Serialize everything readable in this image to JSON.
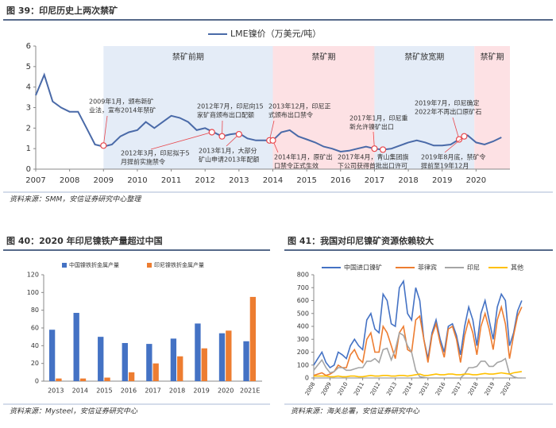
{
  "chart_data": [
    {
      "type": "line",
      "title": "图 39：印尼历史上两次禁矿",
      "source": "资料来源：SMM，安信证券研究中心整理",
      "x": [
        2007,
        2007.25,
        2007.5,
        2007.75,
        2008,
        2008.25,
        2008.5,
        2008.75,
        2009,
        2009.25,
        2009.5,
        2009.75,
        2010,
        2010.25,
        2010.5,
        2010.75,
        2011,
        2011.25,
        2011.5,
        2011.75,
        2012,
        2012.25,
        2012.5,
        2012.75,
        2013,
        2013.25,
        2013.5,
        2013.75,
        2014,
        2014.25,
        2014.5,
        2014.75,
        2015,
        2015.25,
        2015.5,
        2015.75,
        2016,
        2016.25,
        2016.5,
        2016.75,
        2017,
        2017.25,
        2017.5,
        2017.75,
        2018,
        2018.25,
        2018.5,
        2018.75,
        2019,
        2019.25,
        2019.5,
        2019.75,
        2020,
        2020.25,
        2020.5,
        2020.75
      ],
      "series": [
        {
          "name": "LME镍价（万美元/吨）",
          "color": "#4a6aa8",
          "values": [
            3.6,
            4.6,
            3.3,
            3.0,
            2.8,
            2.8,
            2.0,
            1.2,
            1.1,
            1.2,
            1.6,
            1.8,
            1.9,
            2.3,
            2.0,
            2.3,
            2.6,
            2.5,
            2.3,
            1.9,
            2.0,
            1.8,
            1.6,
            1.7,
            1.75,
            1.5,
            1.4,
            1.4,
            1.4,
            1.8,
            1.9,
            1.6,
            1.45,
            1.3,
            1.1,
            1.0,
            0.85,
            0.9,
            1.0,
            1.1,
            1.0,
            0.95,
            1.0,
            1.15,
            1.3,
            1.4,
            1.3,
            1.15,
            1.15,
            1.2,
            1.45,
            1.65,
            1.3,
            1.2,
            1.35,
            1.55
          ]
        }
      ],
      "xlim": [
        2007,
        2021
      ],
      "xticks": [
        2007,
        2008,
        2009,
        2010,
        2011,
        2012,
        2013,
        2014,
        2015,
        2016,
        2017,
        2018,
        2019,
        2020
      ],
      "ylim": [
        0,
        6
      ],
      "yticks": [
        0,
        1,
        2,
        3,
        4,
        5,
        6
      ],
      "periods": [
        {
          "label": "禁矿前期",
          "start": 2009,
          "end": 2014,
          "color": "#e4ecf7"
        },
        {
          "label": "禁矿期",
          "start": 2014,
          "end": 2017,
          "color": "#fde1e4"
        },
        {
          "label": "禁矿放宽期",
          "start": 2017,
          "end": 2019.95,
          "color": "#e4ecf7"
        },
        {
          "label": "禁矿期",
          "start": 2019.95,
          "end": 2021,
          "color": "#fde1e4"
        }
      ],
      "period_label_color": "#e8474c",
      "event_color": "#e8474c",
      "events": [
        {
          "x": 2009,
          "y": 1.15,
          "text": [
            "2009年1月，颁布新矿",
            "业法，宣布2014年禁矿"
          ]
        },
        {
          "x": 2012.2,
          "y": 1.8,
          "text": [
            "2012年3月，印尼拟于5",
            "月提前实施禁令"
          ]
        },
        {
          "x": 2012.5,
          "y": 1.6,
          "text": [
            "2012年7月，印尼向15",
            "家矿商颁布出口配额"
          ]
        },
        {
          "x": 2013,
          "y": 1.7,
          "text": [
            "2013年1月，大部分",
            "矿山申请2013年配额"
          ]
        },
        {
          "x": 2013.9,
          "y": 1.4,
          "text": [
            "2013年12月，印尼正",
            "式颁布出口禁令"
          ]
        },
        {
          "x": 2014,
          "y": 1.4,
          "text": [
            "2014年1月，原矿出",
            "口禁令正式生效"
          ]
        },
        {
          "x": 2017,
          "y": 1.0,
          "text": [
            "2017年1月，印尼重",
            "新允许镍矿出口"
          ]
        },
        {
          "x": 2017.25,
          "y": 0.95,
          "text": [
            "2017年4月，青山集团旗",
            "下公司获得首批出口许可"
          ]
        },
        {
          "x": 2019.5,
          "y": 1.45,
          "text": [
            "2019年7月，印尼确定",
            "2022年不再出口原矿石"
          ]
        },
        {
          "x": 2019.65,
          "y": 1.6,
          "text": [
            "2019年8月底，禁矿令",
            "提前至19年12月"
          ]
        }
      ],
      "legend": "top"
    },
    {
      "type": "bar",
      "title": "图 40：2020 年印尼镍铁产量超过中国",
      "source": "资料来源：Mysteel，安信证券研究中心",
      "categories": [
        "2013",
        "2014",
        "2015",
        "2016",
        "2017",
        "2018",
        "2019",
        "2020",
        "2021E"
      ],
      "series": [
        {
          "name": "中国镍铁折金属产量",
          "color": "#4472c4",
          "values": [
            58,
            77,
            50,
            43,
            42,
            48,
            65,
            54,
            45
          ]
        },
        {
          "name": "印尼镍铁折金属产量",
          "color": "#ed7d31",
          "values": [
            3,
            3,
            4,
            10,
            20,
            28,
            37,
            57,
            95
          ]
        }
      ],
      "ylim": [
        0,
        120
      ],
      "yticks": [
        0,
        20,
        40,
        60,
        80,
        100,
        120
      ],
      "legend": "top"
    },
    {
      "type": "line",
      "title": "图 41：我国对印尼镍矿资源依赖较大",
      "source": "资料来源：海关总署，安信证券研究中心",
      "x": [
        2008,
        2008.25,
        2008.5,
        2008.75,
        2009,
        2009.25,
        2009.5,
        2009.75,
        2010,
        2010.25,
        2010.5,
        2010.75,
        2011,
        2011.25,
        2011.5,
        2011.75,
        2012,
        2012.25,
        2012.5,
        2012.75,
        2013,
        2013.25,
        2013.5,
        2013.75,
        2014,
        2014.25,
        2014.5,
        2014.75,
        2015,
        2015.25,
        2015.5,
        2015.75,
        2016,
        2016.25,
        2016.5,
        2016.75,
        2017,
        2017.25,
        2017.5,
        2017.75,
        2018,
        2018.25,
        2018.5,
        2018.75,
        2019,
        2019.25,
        2019.5,
        2019.75,
        2020,
        2020.25,
        2020.5,
        2020.75
      ],
      "series": [
        {
          "name": "中国进口镍矿",
          "color": "#4472c4",
          "values": [
            100,
            150,
            200,
            120,
            80,
            100,
            200,
            180,
            150,
            250,
            300,
            250,
            220,
            450,
            500,
            380,
            350,
            650,
            600,
            420,
            400,
            700,
            750,
            500,
            450,
            700,
            600,
            300,
            150,
            350,
            450,
            300,
            200,
            400,
            420,
            330,
            180,
            400,
            550,
            450,
            250,
            500,
            600,
            450,
            300,
            550,
            650,
            600,
            250,
            350,
            520,
            600
          ]
        },
        {
          "name": "菲律宾",
          "color": "#ed7d31",
          "values": [
            20,
            30,
            40,
            20,
            30,
            50,
            100,
            80,
            80,
            180,
            220,
            150,
            120,
            300,
            350,
            200,
            200,
            400,
            350,
            250,
            150,
            350,
            400,
            220,
            200,
            450,
            480,
            300,
            120,
            330,
            420,
            270,
            160,
            380,
            400,
            300,
            120,
            330,
            450,
            350,
            180,
            400,
            500,
            380,
            220,
            450,
            550,
            420,
            150,
            330,
            480,
            550
          ]
        },
        {
          "name": "印尼",
          "color": "#a5a5a5",
          "values": [
            60,
            100,
            140,
            80,
            40,
            50,
            80,
            80,
            60,
            60,
            70,
            80,
            80,
            130,
            130,
            150,
            120,
            220,
            230,
            140,
            220,
            350,
            330,
            250,
            200,
            60,
            10,
            5,
            0,
            0,
            0,
            0,
            0,
            0,
            0,
            0,
            0,
            30,
            80,
            80,
            90,
            130,
            130,
            90,
            90,
            120,
            130,
            150,
            30,
            10,
            0,
            0
          ]
        },
        {
          "name": "其他",
          "color": "#ffc000",
          "values": [
            15,
            15,
            15,
            15,
            10,
            10,
            15,
            10,
            10,
            15,
            15,
            10,
            10,
            15,
            20,
            15,
            15,
            20,
            20,
            15,
            15,
            20,
            20,
            15,
            20,
            25,
            30,
            20,
            20,
            25,
            30,
            25,
            25,
            30,
            30,
            25,
            25,
            30,
            30,
            25,
            25,
            30,
            35,
            30,
            30,
            35,
            40,
            35,
            30,
            40,
            45,
            50
          ]
        }
      ],
      "xlim": [
        2008,
        2021
      ],
      "xticks": [
        2008,
        2009,
        2010,
        2011,
        2012,
        2013,
        2014,
        2015,
        2016,
        2017,
        2018,
        2019,
        2020
      ],
      "ylim": [
        0,
        800
      ],
      "yticks": [
        0,
        100,
        200,
        300,
        400,
        500,
        600,
        700,
        800
      ],
      "legend": "top"
    }
  ]
}
